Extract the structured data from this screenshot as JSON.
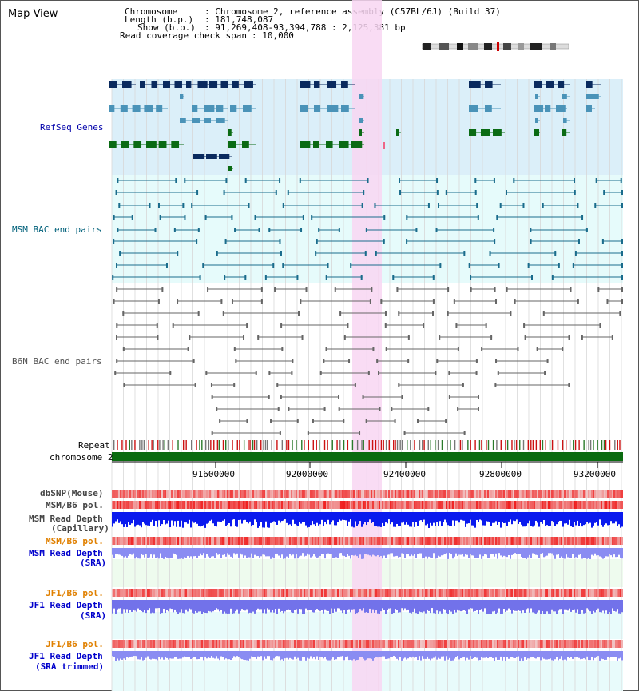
{
  "window": {
    "title": "Map View"
  },
  "header": {
    "chromosome_key": "Chromosome",
    "chromosome_value": ": Chromosome 2, reference assembly (C57BL/6J) (Build 37)",
    "length_key": "Length (b.p.)",
    "length_value": ": 181,748,087",
    "show_key": "Show (b.p.)",
    "show_value": ": 91,269,408-93,394,788 : 2,125,381 bp",
    "coverage_key": "Read coverage check span",
    "coverage_value": ": 10,000"
  },
  "tracks": {
    "refseq": "RefSeq Genes",
    "msm_bac": "MSM BAC end pairs",
    "b6n_bac": "B6N BAC end pairs",
    "repeat": "Repeat",
    "chromosome": "chromosome 2",
    "dbsnp": "dbSNP(Mouse)",
    "msm_b6_pol_1": "MSM/B6 pol.",
    "msm_read_depth_cap_1": "MSM Read Depth",
    "msm_read_depth_cap_2": "(Capillary)",
    "msm_b6_pol_2": "MSM/B6 pol.",
    "msm_read_depth_sra_1": "MSM Read Depth",
    "msm_read_depth_sra_2": "(SRA)",
    "jf1_b6_pol_1": "JF1/B6 pol.",
    "jf1_read_depth_sra_1": "JF1 Read Depth",
    "jf1_read_depth_sra_2": "(SRA)",
    "jf1_b6_pol_2": "JF1/B6 pol.",
    "jf1_read_depth_trim_1": "JF1 Read Depth",
    "jf1_read_depth_trim_2": "(SRA trimmed)"
  },
  "axis": {
    "ticks": [
      "91600000",
      "92000000",
      "92400000",
      "92800000",
      "93200000"
    ]
  },
  "colors": {
    "refseq_bg": "#dbeff9",
    "msm_bg": "#e6fbfb",
    "highlight": "#f8d6f2",
    "gene_dark": "#0a2a5e",
    "gene_mid": "#4a93b8",
    "gene_green": "#0a6b14",
    "msm_line": "#1a6c8c",
    "b6n_line": "#666666",
    "chromosome_bar": "#0a6b10",
    "depth_dark": "#0a1aee",
    "depth_light": "#8a8cf2",
    "pol_red": "#ee3333"
  },
  "icons": {
    "ideogram": "chromosome-ideogram"
  }
}
